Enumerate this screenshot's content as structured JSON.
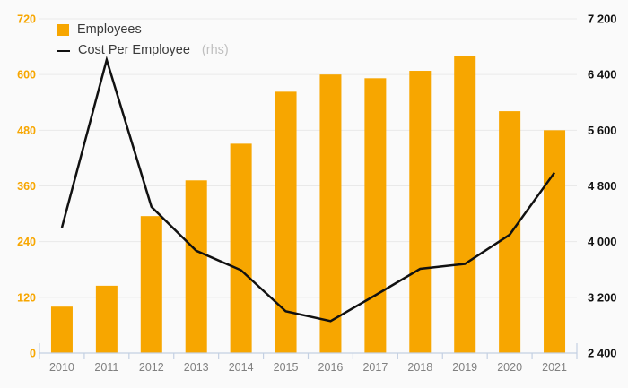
{
  "chart": {
    "colors": {
      "background": "#FAFAFA",
      "grid": "#E9E9E9",
      "axis_line": "#C4D0E2",
      "x_label": "#808080",
      "bar": "#F7A600",
      "line": "#111111",
      "left_tick": "#F7A600",
      "right_tick": "#111111",
      "legend_text": "#3A3A3A",
      "legend_suffix": "#BFBFBF"
    }
  },
  "chart_data": {
    "type": "bar+line combo",
    "title": "",
    "categories": [
      "2010",
      "2011",
      "2012",
      "2013",
      "2014",
      "2015",
      "2016",
      "2017",
      "2018",
      "2019",
      "2020",
      "2021"
    ],
    "series": [
      {
        "name": "Employees",
        "type": "bar",
        "axis": "left",
        "color": "#F7A600",
        "values": [
          100,
          145,
          295,
          372,
          451,
          563,
          600,
          592,
          608,
          640,
          521,
          480
        ]
      },
      {
        "name": "Cost Per Employee",
        "suffix": "(rhs)",
        "type": "line",
        "axis": "right",
        "color": "#111111",
        "values": [
          4200,
          6610,
          4500,
          3870,
          3590,
          3000,
          2860,
          3230,
          3610,
          3680,
          4100,
          4990
        ]
      }
    ],
    "left_axis": {
      "min": 0,
      "max": 720,
      "ticks": [
        "0",
        "120",
        "240",
        "360",
        "480",
        "600",
        "720"
      ]
    },
    "right_axis": {
      "min": 2400,
      "max": 7200,
      "ticks": [
        "2 400",
        "3 200",
        "4 000",
        "4 800",
        "5 600",
        "6 400",
        "7 200"
      ]
    },
    "grid": true,
    "legend_position": "top-left"
  }
}
